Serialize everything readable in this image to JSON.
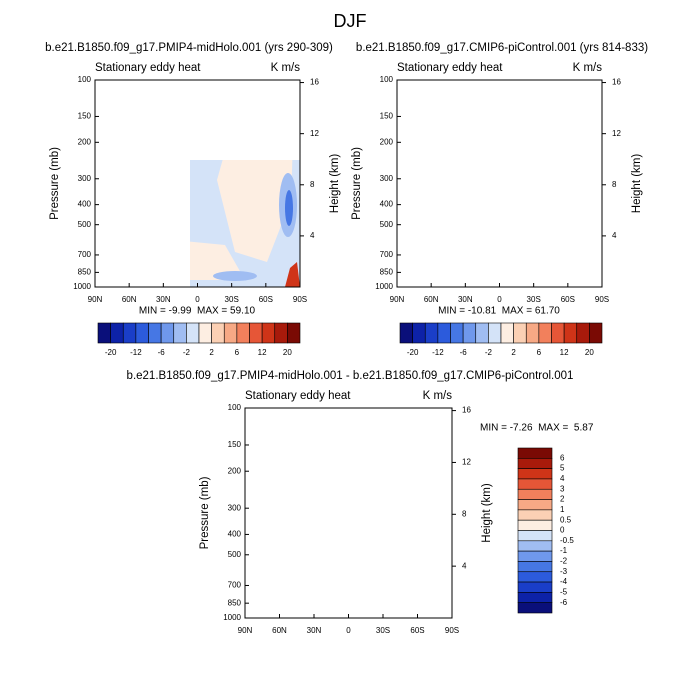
{
  "title": "DJF",
  "chart_data": [
    {
      "type": "contour",
      "title": "b.e21.B1850.f09_g17.PMIP4-midHolo.001 (yrs 290-309)",
      "left_label": "Stationary eddy heat",
      "right_label": "K m/s",
      "y_label": "Pressure (mb)",
      "y2_label": "Height (km)",
      "stats": "MIN = -9.99  MAX = 59.10",
      "xlim": [
        90,
        -90
      ],
      "xticks": [
        {
          "value": 90,
          "label": "90N"
        },
        {
          "value": 60,
          "label": "60N"
        },
        {
          "value": 30,
          "label": "30N"
        },
        0,
        {
          "value": -30,
          "label": "30S"
        },
        {
          "value": -60,
          "label": "60S"
        },
        {
          "value": -90,
          "label": "90S"
        }
      ],
      "ylim": [
        100,
        1000
      ],
      "log_y": true,
      "yticks": [
        100,
        150,
        200,
        300,
        400,
        500,
        700,
        850,
        1000
      ],
      "y2lim": [
        0,
        16.2
      ],
      "y2ticks": [
        4,
        8,
        12,
        16
      ],
      "colorbar": {
        "orientation": "horizontal",
        "labels": [
          -20,
          -12,
          -6,
          -2,
          2,
          6,
          12,
          20
        ],
        "colors": [
          "#0a0f7a",
          "#0d22a8",
          "#1a3ec8",
          "#2c5bdc",
          "#4677e4",
          "#6f98ec",
          "#a0bdf2",
          "#d4e3f8",
          "#fdeee2",
          "#fbd0b4",
          "#f7a985",
          "#f2805c",
          "#e65637",
          "#cf3418",
          "#a81a0b",
          "#7a0a04"
        ]
      }
    },
    {
      "type": "contour",
      "title": "b.e21.B1850.f09_g17.CMIP6-piControl.001 (yrs 814-833)",
      "left_label": "Stationary eddy heat",
      "right_label": "K m/s",
      "y_label": "Pressure (mb)",
      "y2_label": "Height (km)",
      "stats": "MIN = -10.81  MAX = 61.70",
      "xlim": [
        90,
        -90
      ],
      "xticks": [
        {
          "value": 90,
          "label": "90N"
        },
        {
          "value": 60,
          "label": "60N"
        },
        {
          "value": 30,
          "label": "30N"
        },
        0,
        {
          "value": -30,
          "label": "30S"
        },
        {
          "value": -60,
          "label": "60S"
        },
        {
          "value": -90,
          "label": "90S"
        }
      ],
      "ylim": [
        100,
        1000
      ],
      "log_y": true,
      "yticks": [
        100,
        150,
        200,
        300,
        400,
        500,
        700,
        850,
        1000
      ],
      "y2lim": [
        0,
        16.2
      ],
      "y2ticks": [
        4,
        8,
        12,
        16
      ],
      "colorbar": {
        "orientation": "horizontal",
        "labels": [
          -20,
          -12,
          -6,
          -2,
          2,
          6,
          12,
          20
        ],
        "colors": [
          "#0a0f7a",
          "#0d22a8",
          "#1a3ec8",
          "#2c5bdc",
          "#4677e4",
          "#6f98ec",
          "#a0bdf2",
          "#d4e3f8",
          "#fdeee2",
          "#fbd0b4",
          "#f7a985",
          "#f2805c",
          "#e65637",
          "#cf3418",
          "#a81a0b",
          "#7a0a04"
        ]
      }
    },
    {
      "type": "contour",
      "title": "b.e21.B1850.f09_g17.PMIP4-midHolo.001 - b.e21.B1850.f09_g17.CMIP6-piControl.001",
      "left_label": "Stationary eddy heat",
      "right_label": "K m/s",
      "y_label": "Pressure (mb)",
      "y2_label": "Height (km)",
      "stats": "MIN = -7.26  MAX =  5.87",
      "xlim": [
        90,
        -90
      ],
      "xticks": [
        {
          "value": 90,
          "label": "90N"
        },
        {
          "value": 60,
          "label": "60N"
        },
        {
          "value": 30,
          "label": "30N"
        },
        0,
        {
          "value": -30,
          "label": "30S"
        },
        {
          "value": -60,
          "label": "60S"
        },
        {
          "value": -90,
          "label": "90S"
        }
      ],
      "ylim": [
        100,
        1000
      ],
      "log_y": true,
      "yticks": [
        100,
        150,
        200,
        300,
        400,
        500,
        700,
        850,
        1000
      ],
      "y2lim": [
        0,
        16.2
      ],
      "y2ticks": [
        4,
        8,
        12,
        16
      ],
      "colorbar": {
        "orientation": "vertical",
        "labels": [
          6,
          5,
          4,
          3,
          2,
          1,
          0.5,
          0,
          -0.5,
          -1,
          -2,
          -3,
          -4,
          -5,
          -6
        ],
        "colors": [
          "#7a0a04",
          "#a81a0b",
          "#cf3418",
          "#e65637",
          "#f2805c",
          "#f7a985",
          "#fbd0b4",
          "#fdeee2",
          "#d4e3f8",
          "#a0bdf2",
          "#6f98ec",
          "#4677e4",
          "#2c5bdc",
          "#1a3ec8",
          "#0d22a8",
          "#0a0f7a"
        ]
      }
    }
  ]
}
